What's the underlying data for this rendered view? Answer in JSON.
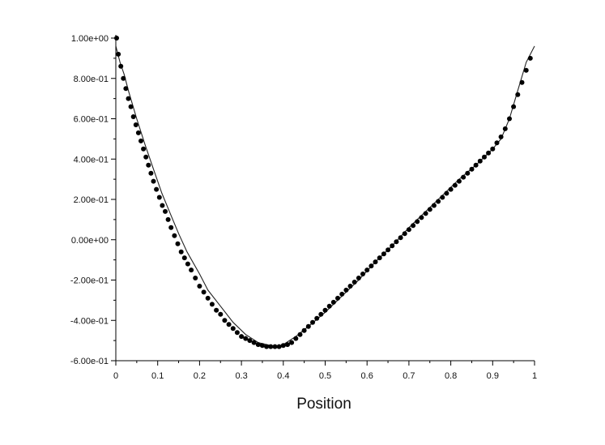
{
  "chart_data": {
    "type": "scatter",
    "title": "",
    "xlabel": "Position",
    "ylabel": "",
    "xlim": [
      0,
      1
    ],
    "ylim": [
      -0.6,
      1.0
    ],
    "grid": false,
    "legend": "none",
    "x_ticks": [
      "0",
      "0.1",
      "0.2",
      "0.3",
      "0.4",
      "0.5",
      "0.6",
      "0.7",
      "0.8",
      "0.9",
      "1"
    ],
    "y_ticks": [
      "1.00e+00",
      "8.00e-01",
      "6.00e-01",
      "4.00e-01",
      "2.00e-01",
      "0.00e+00",
      "-2.00e-01",
      "-4.00e-01",
      "-6.00e-01"
    ],
    "series": [
      {
        "kind": "line",
        "color": "#222222",
        "x": [
          0,
          0.01,
          0.02,
          0.03,
          0.05,
          0.07,
          0.09,
          0.11,
          0.13,
          0.15,
          0.17,
          0.2,
          0.22,
          0.25,
          0.28,
          0.31,
          0.34,
          0.37,
          0.385,
          0.4,
          0.43,
          0.46,
          0.5,
          0.54,
          0.58,
          0.62,
          0.66,
          0.7,
          0.74,
          0.78,
          0.82,
          0.86,
          0.9,
          0.92,
          0.94,
          0.96,
          0.98,
          1.0
        ],
        "y": [
          0.96,
          0.88,
          0.82,
          0.74,
          0.6,
          0.47,
          0.35,
          0.23,
          0.13,
          0.03,
          -0.06,
          -0.17,
          -0.25,
          -0.33,
          -0.41,
          -0.47,
          -0.51,
          -0.525,
          -0.53,
          -0.52,
          -0.48,
          -0.43,
          -0.36,
          -0.28,
          -0.2,
          -0.11,
          -0.03,
          0.06,
          0.14,
          0.22,
          0.3,
          0.37,
          0.45,
          0.5,
          0.6,
          0.74,
          0.88,
          0.96
        ]
      },
      {
        "kind": "scatter",
        "color": "#000000",
        "x": [
          0.002,
          0.006,
          0.012,
          0.018,
          0.024,
          0.03,
          0.036,
          0.042,
          0.048,
          0.054,
          0.06,
          0.066,
          0.072,
          0.078,
          0.084,
          0.09,
          0.097,
          0.104,
          0.111,
          0.118,
          0.125,
          0.132,
          0.14,
          0.148,
          0.156,
          0.164,
          0.172,
          0.18,
          0.19,
          0.2,
          0.21,
          0.22,
          0.23,
          0.24,
          0.25,
          0.26,
          0.27,
          0.28,
          0.29,
          0.3,
          0.31,
          0.32,
          0.33,
          0.34,
          0.35,
          0.36,
          0.37,
          0.38,
          0.39,
          0.4,
          0.41,
          0.42,
          0.43,
          0.44,
          0.45,
          0.46,
          0.47,
          0.48,
          0.49,
          0.5,
          0.51,
          0.52,
          0.53,
          0.54,
          0.55,
          0.56,
          0.57,
          0.58,
          0.59,
          0.6,
          0.61,
          0.62,
          0.63,
          0.64,
          0.65,
          0.66,
          0.67,
          0.68,
          0.69,
          0.7,
          0.71,
          0.72,
          0.73,
          0.74,
          0.75,
          0.76,
          0.77,
          0.78,
          0.79,
          0.8,
          0.81,
          0.82,
          0.83,
          0.84,
          0.85,
          0.86,
          0.87,
          0.88,
          0.89,
          0.9,
          0.91,
          0.92,
          0.93,
          0.94,
          0.95,
          0.96,
          0.97,
          0.98,
          0.99
        ],
        "y": [
          1.0,
          0.92,
          0.86,
          0.8,
          0.75,
          0.7,
          0.66,
          0.61,
          0.57,
          0.53,
          0.49,
          0.45,
          0.41,
          0.37,
          0.33,
          0.29,
          0.25,
          0.21,
          0.17,
          0.14,
          0.1,
          0.06,
          0.02,
          -0.02,
          -0.06,
          -0.09,
          -0.12,
          -0.15,
          -0.19,
          -0.23,
          -0.26,
          -0.29,
          -0.32,
          -0.35,
          -0.37,
          -0.4,
          -0.42,
          -0.44,
          -0.46,
          -0.48,
          -0.49,
          -0.5,
          -0.51,
          -0.52,
          -0.525,
          -0.53,
          -0.53,
          -0.53,
          -0.53,
          -0.525,
          -0.52,
          -0.51,
          -0.49,
          -0.47,
          -0.45,
          -0.43,
          -0.41,
          -0.39,
          -0.37,
          -0.35,
          -0.33,
          -0.31,
          -0.29,
          -0.27,
          -0.25,
          -0.23,
          -0.21,
          -0.19,
          -0.17,
          -0.15,
          -0.13,
          -0.11,
          -0.09,
          -0.07,
          -0.05,
          -0.03,
          -0.01,
          0.01,
          0.03,
          0.05,
          0.07,
          0.09,
          0.11,
          0.13,
          0.15,
          0.17,
          0.19,
          0.21,
          0.23,
          0.25,
          0.27,
          0.29,
          0.31,
          0.33,
          0.35,
          0.37,
          0.39,
          0.41,
          0.43,
          0.45,
          0.48,
          0.51,
          0.55,
          0.6,
          0.66,
          0.72,
          0.78,
          0.84,
          0.9
        ]
      }
    ]
  }
}
